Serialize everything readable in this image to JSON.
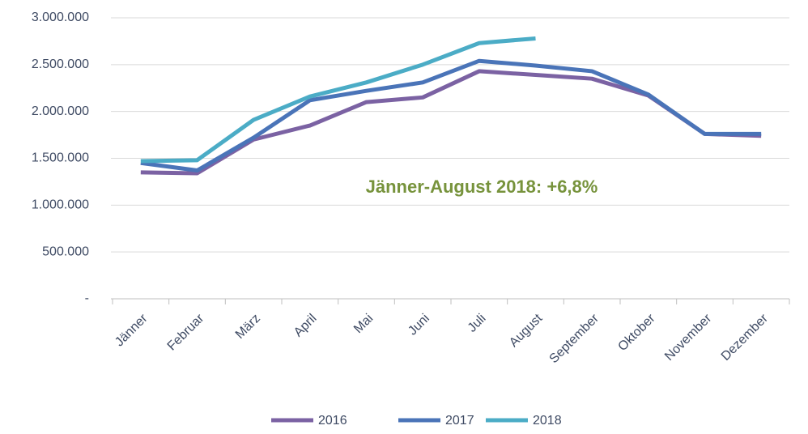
{
  "chart_data": {
    "type": "line",
    "annotation": "Jänner-August 2018: +6,8%",
    "categories": [
      "Jänner",
      "Februar",
      "März",
      "April",
      "Mai",
      "Juni",
      "Juli",
      "August",
      "September",
      "Oktober",
      "November",
      "Dezember"
    ],
    "series": [
      {
        "name": "2016",
        "color": "#7b62a3",
        "values": [
          1350000,
          1340000,
          1700000,
          1850000,
          2100000,
          2150000,
          2430000,
          2390000,
          2350000,
          2170000,
          1760000,
          1740000
        ]
      },
      {
        "name": "2017",
        "color": "#4a74b8",
        "values": [
          1450000,
          1370000,
          1720000,
          2120000,
          2220000,
          2310000,
          2540000,
          2490000,
          2430000,
          2180000,
          1760000,
          1760000
        ]
      },
      {
        "name": "2018",
        "color": "#4bacc6",
        "values": [
          1470000,
          1480000,
          1910000,
          2160000,
          2310000,
          2500000,
          2730000,
          2780000,
          null,
          null,
          null,
          null
        ]
      }
    ],
    "ylim": [
      0,
      3000000
    ],
    "yticks": [
      {
        "value": 0,
        "label": "-"
      },
      {
        "value": 500000,
        "label": "500.000"
      },
      {
        "value": 1000000,
        "label": "1.000.000"
      },
      {
        "value": 1500000,
        "label": "1.500.000"
      },
      {
        "value": 2000000,
        "label": "2.000.000"
      },
      {
        "value": 2500000,
        "label": "2.500.000"
      },
      {
        "value": 3000000,
        "label": "3.000.000"
      }
    ],
    "grid": true,
    "legend": "bottom"
  }
}
